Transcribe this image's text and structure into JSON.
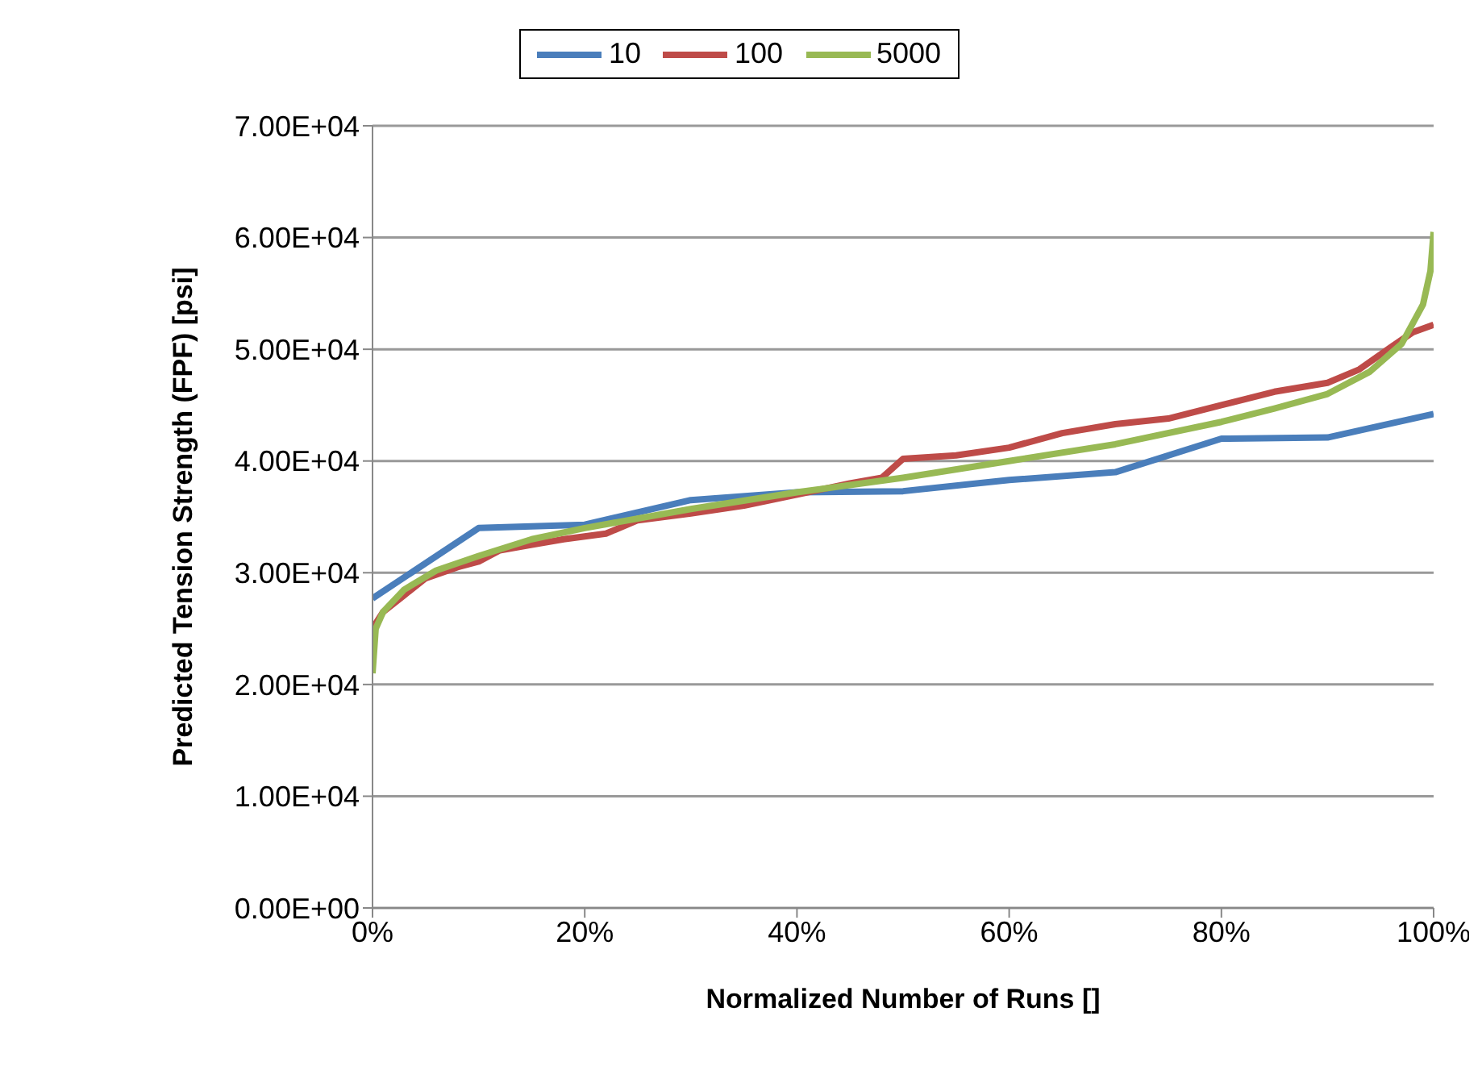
{
  "chart_data": {
    "type": "line",
    "xlabel": "Normalized Number of Runs []",
    "ylabel": "Predicted Tension Strength (FPF) [psi]",
    "xlim": [
      0,
      1
    ],
    "xticks": [
      {
        "value": 0,
        "label": "0%"
      },
      {
        "value": 0.2,
        "label": "20%"
      },
      {
        "value": 0.4,
        "label": "40%"
      },
      {
        "value": 0.6,
        "label": "60%"
      },
      {
        "value": 0.8,
        "label": "80%"
      },
      {
        "value": 1,
        "label": "100%"
      }
    ],
    "ylim": [
      0,
      70000
    ],
    "yticks": [
      {
        "value": 0,
        "label": "0.00E+00"
      },
      {
        "value": 10000,
        "label": "1.00E+04"
      },
      {
        "value": 20000,
        "label": "2.00E+04"
      },
      {
        "value": 30000,
        "label": "3.00E+04"
      },
      {
        "value": 40000,
        "label": "4.00E+04"
      },
      {
        "value": 50000,
        "label": "5.00E+04"
      },
      {
        "value": 60000,
        "label": "6.00E+04"
      },
      {
        "value": 70000,
        "label": "7.00E+04"
      }
    ],
    "grid": "y",
    "legend": "top",
    "marker": "none",
    "line_style": "solid",
    "series": [
      {
        "name": "10",
        "color": "#4a7ebb",
        "x": [
          0,
          0.1,
          0.2,
          0.3,
          0.4,
          0.5,
          0.6,
          0.7,
          0.8,
          0.9,
          1
        ],
        "values": [
          27700,
          34000,
          34300,
          36500,
          37200,
          37300,
          38300,
          39000,
          42000,
          42100,
          44200
        ]
      },
      {
        "name": "100",
        "color": "#be4b48",
        "x": [
          0,
          0.01,
          0.03,
          0.05,
          0.08,
          0.1,
          0.12,
          0.15,
          0.18,
          0.22,
          0.25,
          0.3,
          0.35,
          0.4,
          0.45,
          0.48,
          0.5,
          0.55,
          0.6,
          0.65,
          0.7,
          0.75,
          0.8,
          0.85,
          0.9,
          0.93,
          0.96,
          0.98,
          1
        ],
        "values": [
          25000,
          26500,
          28000,
          29500,
          30500,
          31000,
          32000,
          32500,
          33000,
          33500,
          34700,
          35300,
          36000,
          37000,
          38000,
          38500,
          40200,
          40500,
          41200,
          42500,
          43300,
          43800,
          45000,
          46200,
          47000,
          48200,
          50200,
          51500,
          52200
        ]
      },
      {
        "name": "5000",
        "color": "#98b954",
        "x": [
          0,
          0.003,
          0.01,
          0.03,
          0.06,
          0.1,
          0.15,
          0.2,
          0.3,
          0.4,
          0.5,
          0.6,
          0.7,
          0.8,
          0.85,
          0.9,
          0.94,
          0.97,
          0.99,
          0.997,
          1
        ],
        "values": [
          21000,
          25000,
          26500,
          28500,
          30200,
          31500,
          33000,
          34000,
          35700,
          37200,
          38500,
          40000,
          41500,
          43500,
          44700,
          46000,
          48000,
          50500,
          54000,
          57000,
          60500
        ]
      }
    ]
  }
}
